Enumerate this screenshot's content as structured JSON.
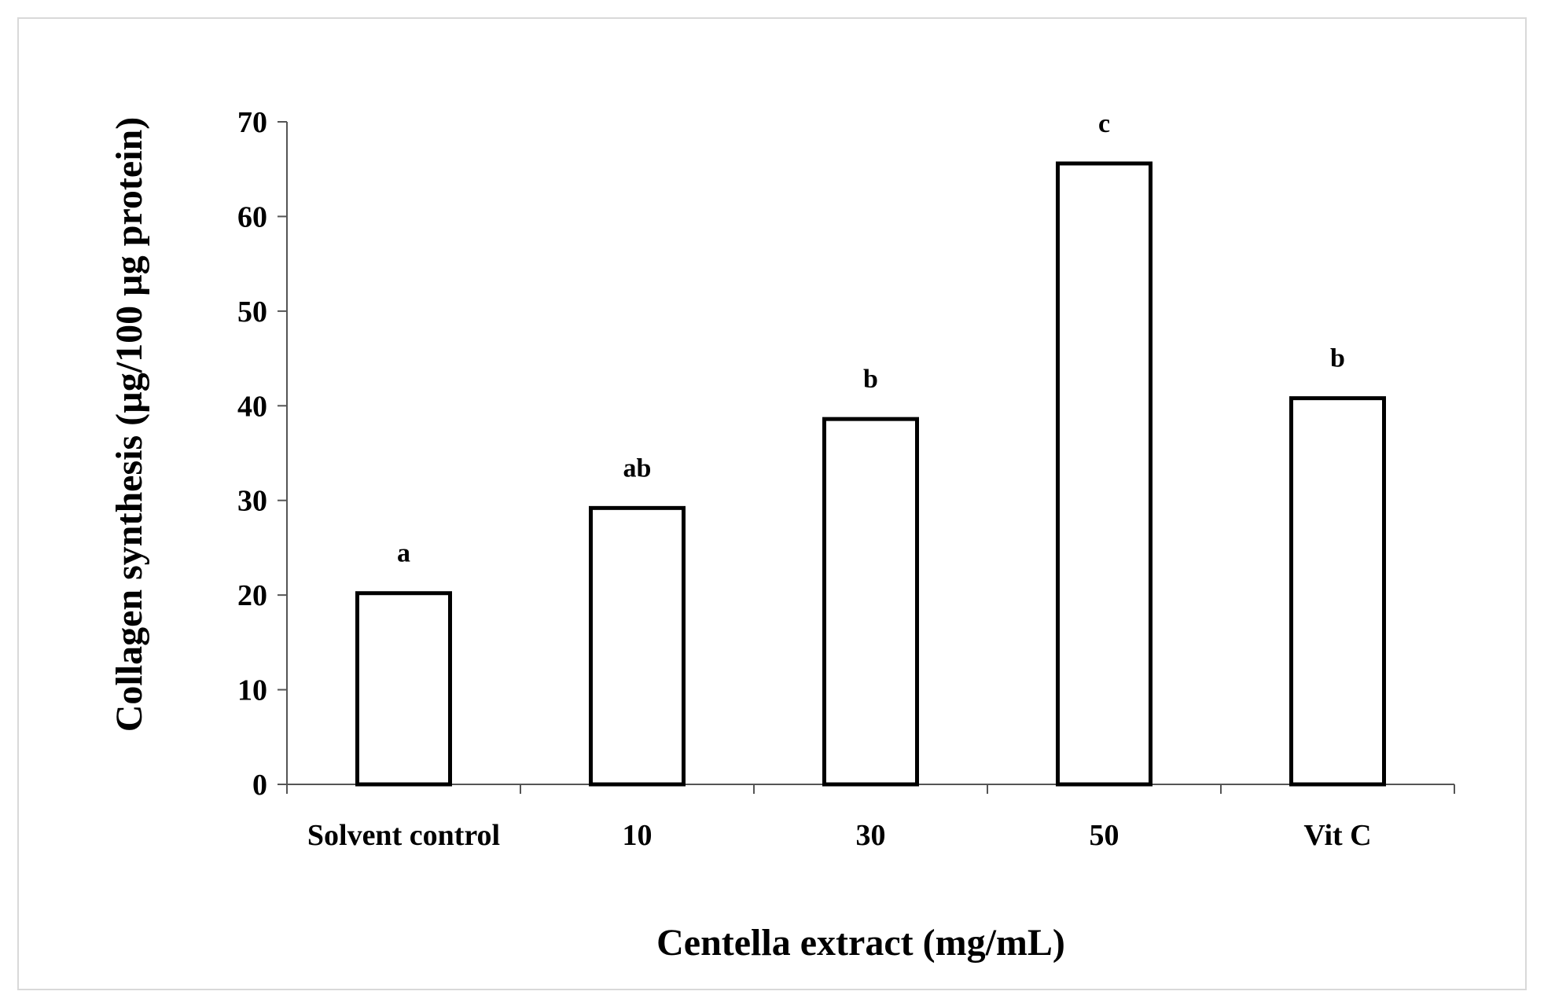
{
  "chart_data": {
    "type": "bar",
    "title": "",
    "xlabel": "Centella extract (mg/mL)",
    "ylabel": "Collagen synthesis  (µg/100 µg protein)",
    "categories": [
      "Solvent control",
      "10",
      "30",
      "50",
      "Vit C"
    ],
    "values": [
      20.2,
      29.2,
      38.6,
      65.6,
      40.8
    ],
    "annotations": [
      "a",
      "ab",
      "b",
      "c",
      "b"
    ],
    "ylim": [
      0,
      70
    ],
    "yticks": [
      "0",
      "10",
      "20",
      "30",
      "40",
      "50",
      "60",
      "70"
    ],
    "grid": false,
    "legend": "none",
    "colors": {
      "bar_fill": "#ffffff",
      "bar_stroke": "#000000",
      "axis": "#555555"
    }
  }
}
